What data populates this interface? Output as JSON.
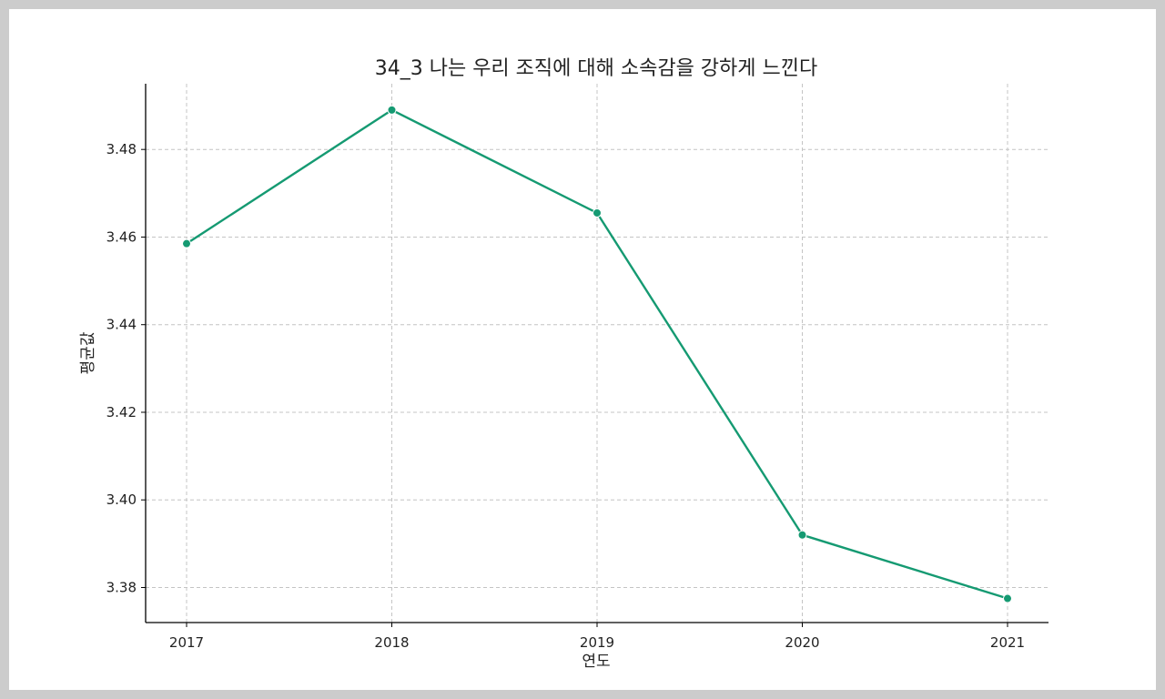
{
  "chart_data": {
    "type": "line",
    "title": "34_3 나는 우리 조직에 대해 소속감을 강하게 느낀다",
    "xlabel": "연도",
    "ylabel": "평균값",
    "categories": [
      "2017",
      "2018",
      "2019",
      "2020",
      "2021"
    ],
    "series": [
      {
        "values": [
          3.4585,
          3.489,
          3.4655,
          3.392,
          3.3775
        ],
        "color": "#159a72"
      }
    ],
    "ylim": [
      3.372,
      3.495
    ],
    "yticks": [
      3.38,
      3.4,
      3.42,
      3.44,
      3.46,
      3.48
    ],
    "ytick_labels": [
      "3.38",
      "3.40",
      "3.42",
      "3.44",
      "3.46",
      "3.48"
    ],
    "grid": true,
    "legend": "none"
  }
}
